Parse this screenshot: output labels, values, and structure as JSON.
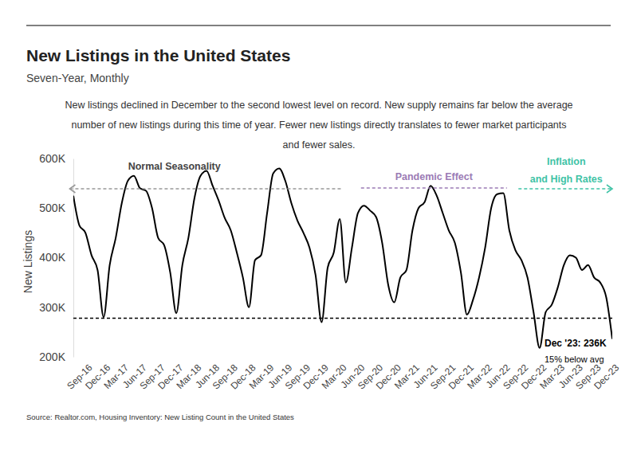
{
  "chart_data": {
    "type": "line",
    "title": "New Listings in the United States",
    "subtitle": "Seven-Year, Monthly",
    "description": [
      "New listings declined in December to the second lowest level on record. New supply remains far below the average",
      "number of new listings during this time of year. Fewer new listings directly translates to fewer market participants",
      "and fewer sales."
    ],
    "y_label": "New Listings",
    "source": "Source:  Realtor.com, Housing Inventory: New Listing Count in the United States",
    "categories": [
      null,
      null,
      "Sep-16",
      null,
      null,
      "Dec-16",
      null,
      null,
      "Mar-17",
      null,
      null,
      "Jun-17",
      null,
      null,
      "Sep-17",
      null,
      null,
      "Dec-17",
      null,
      null,
      "Mar-18",
      null,
      null,
      "Jun-18",
      null,
      null,
      "Sep-18",
      null,
      null,
      "Dec-18",
      null,
      null,
      "Mar-19",
      null,
      null,
      "Jun-19",
      null,
      null,
      "Sep-19",
      null,
      null,
      "Dec-19",
      null,
      null,
      "Mar-20",
      null,
      null,
      "Jun-20",
      null,
      null,
      "Sep-20",
      null,
      null,
      "Dec-20",
      null,
      null,
      "Mar-21",
      null,
      null,
      "Jun-21",
      null,
      null,
      "Sep-21",
      null,
      null,
      "Dec-21",
      null,
      null,
      "Mar-22",
      null,
      null,
      "Jun-22",
      null,
      null,
      "Sep-22",
      null,
      null,
      "Dec-22",
      null,
      null,
      "Mar-23",
      null,
      null,
      "Jun-23",
      null,
      null,
      "Sep-23",
      null,
      null,
      "Dec-23"
    ],
    "series": [
      {
        "color": "#000000",
        "values": [
          525,
          465,
          450,
          405,
          375,
          280,
          385,
          440,
          510,
          555,
          565,
          540,
          535,
          500,
          440,
          425,
          370,
          288,
          385,
          440,
          520,
          565,
          575,
          545,
          515,
          480,
          455,
          410,
          360,
          300,
          395,
          405,
          490,
          570,
          580,
          555,
          510,
          475,
          450,
          420,
          365,
          270,
          380,
          410,
          478,
          350,
          420,
          490,
          505,
          495,
          482,
          430,
          345,
          310,
          360,
          375,
          455,
          500,
          512,
          545,
          525,
          490,
          455,
          430,
          370,
          285,
          315,
          360,
          420,
          500,
          528,
          530,
          455,
          415,
          395,
          360,
          290,
          218,
          290,
          305,
          340,
          385,
          405,
          400,
          375,
          385,
          360,
          350,
          320,
          236
        ]
      }
    ],
    "ylim": [
      200,
      600
    ],
    "yticks": [
      {
        "value": 200,
        "label": "200K"
      },
      {
        "value": 300,
        "label": "300K"
      },
      {
        "value": 400,
        "label": "400K"
      },
      {
        "value": 500,
        "label": "500K"
      },
      {
        "value": 600,
        "label": "600K"
      }
    ],
    "grid": false,
    "average": 278,
    "periods": [
      {
        "text": [
          "Normal Seasonality"
        ],
        "color": "#999999"
      },
      {
        "text": [
          "Pandemic Effect"
        ],
        "color": "#9b7bb5"
      },
      {
        "text": [
          "Inflation",
          "and High Rates"
        ],
        "color": "#3fc3a6"
      }
    ],
    "callout": {
      "text": [
        "Dec '23: 236K",
        "15% below avg"
      ]
    }
  }
}
